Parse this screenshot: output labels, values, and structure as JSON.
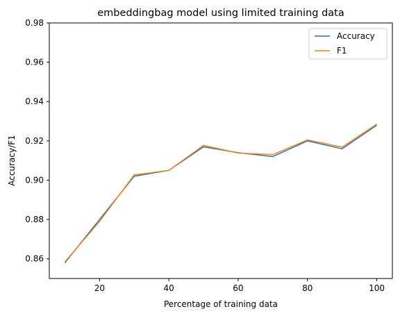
{
  "chart_data": {
    "type": "line",
    "title": "embeddingbag model using limited training data",
    "xlabel": "Percentage of training data",
    "ylabel": "Accuracy/F1",
    "x": [
      10,
      20,
      30,
      40,
      50,
      60,
      70,
      80,
      90,
      100
    ],
    "xlim": [
      5.5,
      104.5
    ],
    "ylim": [
      0.85,
      0.98
    ],
    "xticks": [
      20,
      40,
      60,
      80,
      100
    ],
    "xtick_labels": [
      "20",
      "40",
      "60",
      "80",
      "100"
    ],
    "yticks": [
      0.86,
      0.88,
      0.9,
      0.92,
      0.94,
      0.96,
      0.98
    ],
    "ytick_labels": [
      "0.86",
      "0.88",
      "0.90",
      "0.92",
      "0.94",
      "0.96",
      "0.98"
    ],
    "grid": false,
    "legend_position": "top-right",
    "series": [
      {
        "name": "Accuracy",
        "color": "#1f77b4",
        "values": [
          0.858,
          0.88,
          0.902,
          0.905,
          0.917,
          0.914,
          0.912,
          0.92,
          0.916,
          0.928
        ]
      },
      {
        "name": "F1",
        "color": "#ff7f0e",
        "values": [
          0.8585,
          0.879,
          0.9027,
          0.905,
          0.9177,
          0.9138,
          0.913,
          0.9205,
          0.9168,
          0.9285
        ]
      }
    ]
  }
}
